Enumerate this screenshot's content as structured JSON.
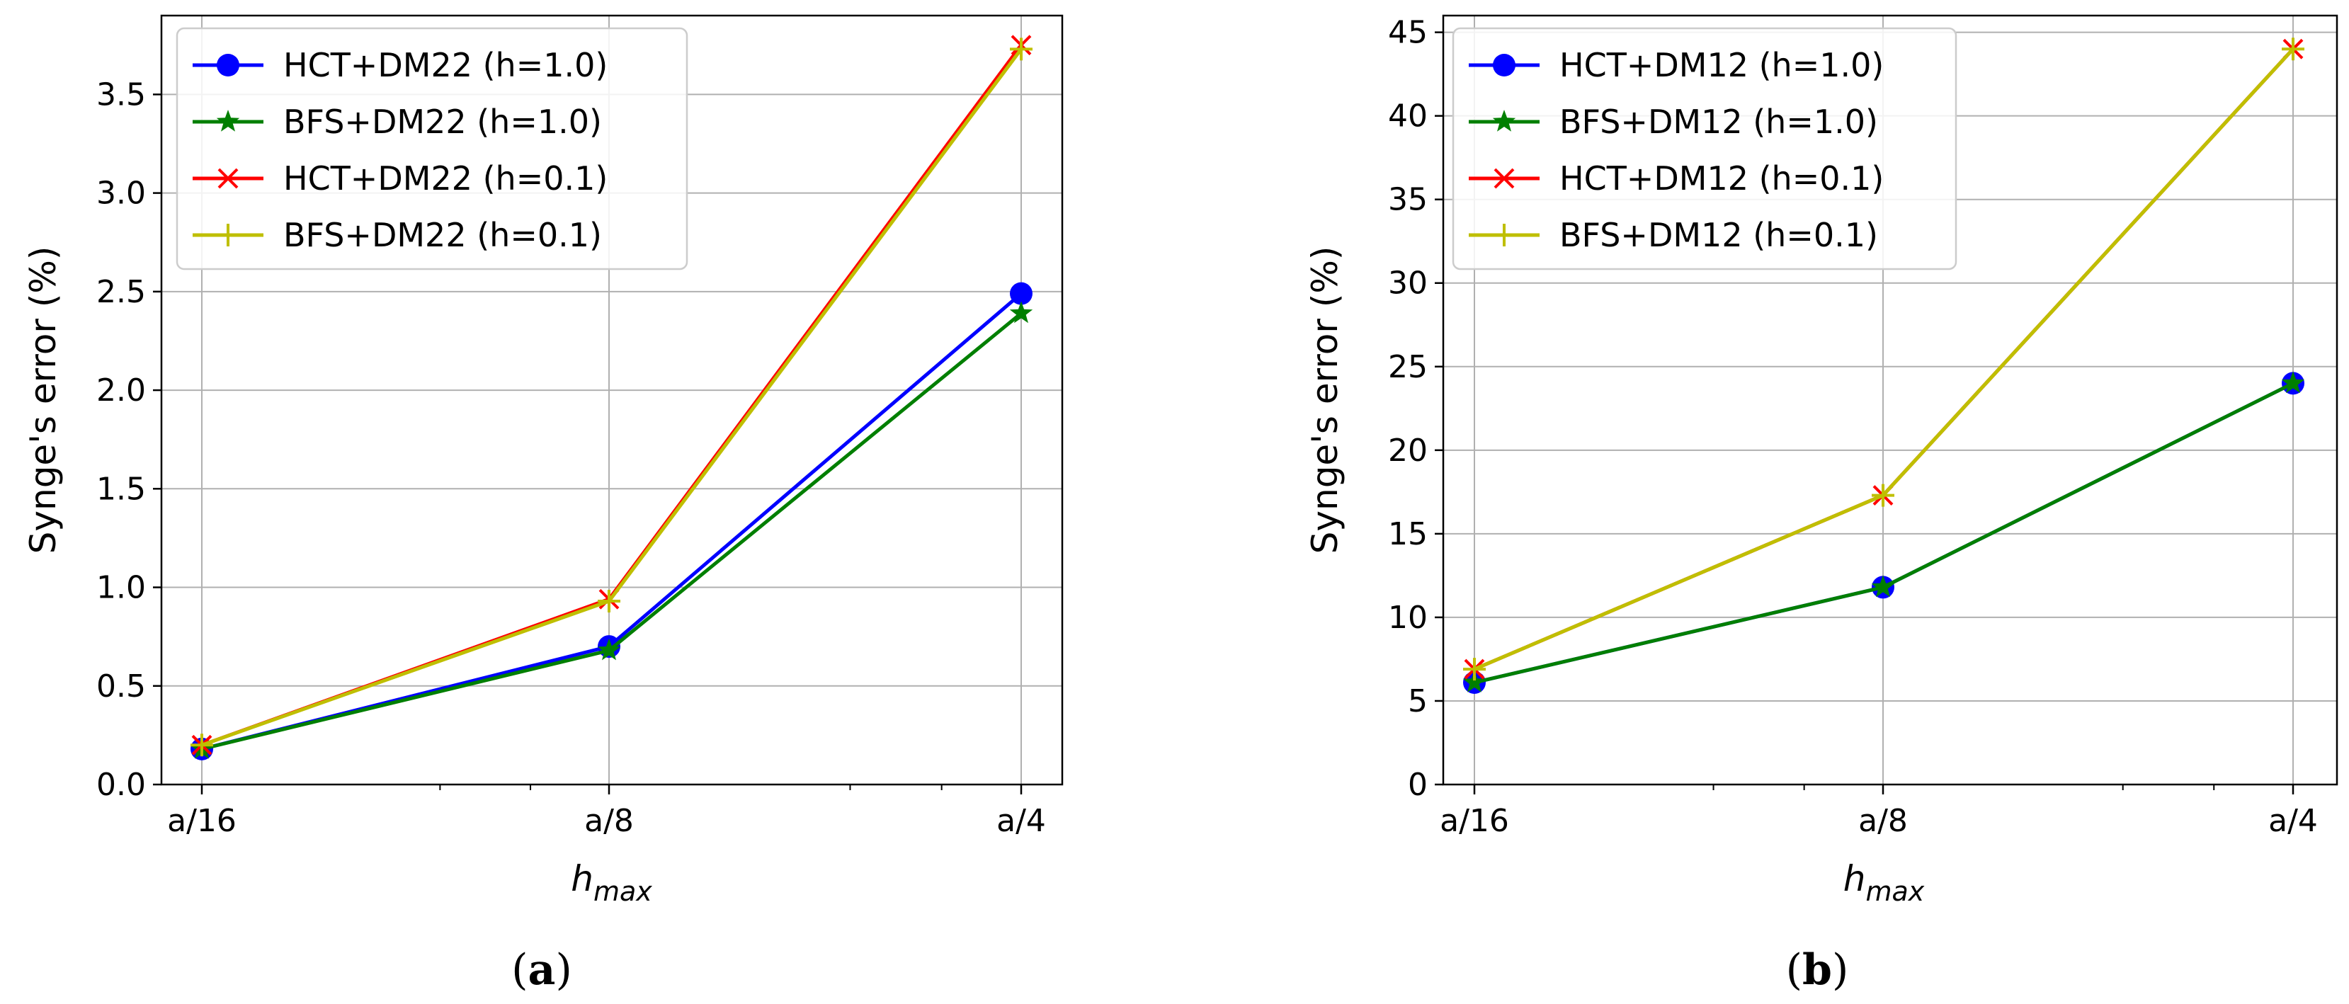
{
  "chart_data": [
    {
      "type": "line",
      "caption_open": "(",
      "caption_letter": "a",
      "caption_close": ")",
      "xlabel_main": "h",
      "xlabel_sub": "max",
      "ylabel": "Synge's error  (%)",
      "x_ticks": [
        "a/16",
        "a/8",
        "a/4"
      ],
      "y_ticks": [
        0.0,
        0.5,
        1.0,
        1.5,
        2.0,
        2.5,
        3.0,
        3.5
      ],
      "y_tick_labels": [
        "0.0",
        "0.5",
        "1.0",
        "1.5",
        "2.0",
        "2.5",
        "3.0",
        "3.5"
      ],
      "ylim": [
        0,
        3.9
      ],
      "grid": true,
      "legend_placement": "top-left",
      "series": [
        {
          "name": "HCT+DM22 (h=1.0)",
          "color": "#0000ff",
          "marker": "circle",
          "values": [
            0.18,
            0.7,
            2.49
          ]
        },
        {
          "name": "BFS+DM22 (h=1.0)",
          "color": "#007f00",
          "marker": "star",
          "values": [
            0.18,
            0.68,
            2.39
          ]
        },
        {
          "name": "HCT+DM22 (h=0.1)",
          "color": "#ff0000",
          "marker": "x",
          "values": [
            0.2,
            0.94,
            3.75
          ]
        },
        {
          "name": "BFS+DM22 (h=0.1)",
          "color": "#bfbf00",
          "marker": "plus",
          "values": [
            0.2,
            0.93,
            3.73
          ]
        }
      ]
    },
    {
      "type": "line",
      "caption_open": "(",
      "caption_letter": "b",
      "caption_close": ")",
      "xlabel_main": "h",
      "xlabel_sub": "max",
      "ylabel": "Synge's error  (%)",
      "x_ticks": [
        "a/16",
        "a/8",
        "a/4"
      ],
      "y_ticks": [
        0,
        5,
        10,
        15,
        20,
        25,
        30,
        35,
        40,
        45
      ],
      "y_tick_labels": [
        "0",
        "5",
        "10",
        "15",
        "20",
        "25",
        "30",
        "35",
        "40",
        "45"
      ],
      "ylim": [
        0,
        46
      ],
      "grid": true,
      "legend_placement": "top-left",
      "series": [
        {
          "name": "HCT+DM12 (h=1.0)",
          "color": "#0000ff",
          "marker": "circle",
          "values": [
            6.1,
            11.8,
            24.0
          ]
        },
        {
          "name": "BFS+DM12 (h=1.0)",
          "color": "#007f00",
          "marker": "star",
          "values": [
            6.1,
            11.8,
            24.0
          ]
        },
        {
          "name": "HCT+DM12 (h=0.1)",
          "color": "#ff0000",
          "marker": "x",
          "values": [
            6.9,
            17.3,
            44.0
          ]
        },
        {
          "name": "BFS+DM12 (h=0.1)",
          "color": "#bfbf00",
          "marker": "plus",
          "values": [
            6.9,
            17.3,
            44.0
          ]
        }
      ]
    }
  ]
}
